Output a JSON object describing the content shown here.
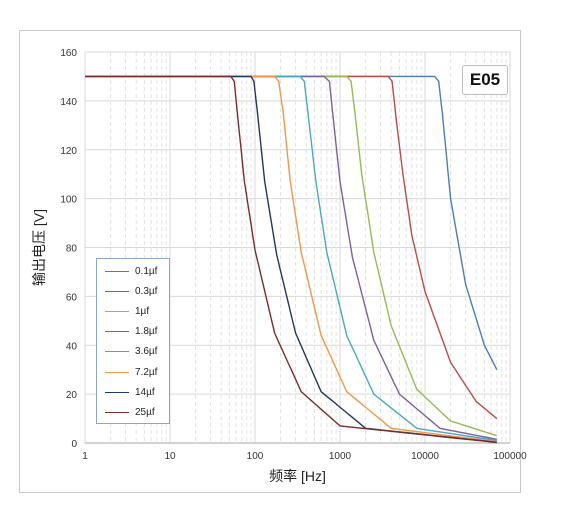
{
  "badge": "E05",
  "chart_data": {
    "type": "line",
    "xlabel": "频率 [Hz]",
    "ylabel": "输出电压 [V]",
    "xscale": "log",
    "xlim": [
      1,
      100000
    ],
    "ylim": [
      0,
      160
    ],
    "xticks": [
      "1",
      "10",
      "100",
      "1000",
      "10000",
      "100000"
    ],
    "yticks": [
      "0",
      "20",
      "40",
      "60",
      "80",
      "100",
      "120",
      "140",
      "160"
    ],
    "grid": true,
    "legend_position": "left",
    "series": [
      {
        "name": "0.1µf",
        "color": "#4a7ebb",
        "x": [
          1,
          10,
          100,
          1000,
          10000,
          13000,
          14500,
          16000,
          20000,
          30000,
          50000,
          70000
        ],
        "y": [
          150,
          150,
          150,
          150,
          150,
          150,
          148,
          135,
          100,
          65,
          40,
          30
        ]
      },
      {
        "name": "0.3µf",
        "color": "#be4b48",
        "x": [
          1,
          10,
          100,
          1000,
          3700,
          4100,
          4600,
          5500,
          7000,
          10000,
          20000,
          40000,
          70000
        ],
        "y": [
          150,
          150,
          150,
          150,
          150,
          148,
          132,
          110,
          85,
          62,
          33,
          17,
          10
        ]
      },
      {
        "name": "1µf",
        "color": "#98b954",
        "x": [
          1,
          10,
          100,
          1000,
          1200,
          1350,
          1500,
          1800,
          2500,
          4000,
          8000,
          20000,
          70000
        ],
        "y": [
          150,
          150,
          150,
          150,
          150,
          148,
          135,
          110,
          78,
          48,
          22,
          9,
          3
        ]
      },
      {
        "name": "1.8µf",
        "color": "#7d60a0",
        "x": [
          1,
          10,
          100,
          650,
          750,
          820,
          1000,
          1400,
          2500,
          5000,
          15000,
          70000
        ],
        "y": [
          150,
          150,
          150,
          150,
          148,
          135,
          107,
          76,
          42,
          20,
          6,
          1.5
        ]
      },
      {
        "name": "3.6µf",
        "color": "#46aac5",
        "x": [
          1,
          10,
          100,
          340,
          380,
          420,
          520,
          700,
          1200,
          2500,
          8000,
          70000
        ],
        "y": [
          150,
          150,
          150,
          150,
          148,
          135,
          107,
          78,
          44,
          20,
          6,
          1
        ]
      },
      {
        "name": "7.2µf",
        "color": "#f79646",
        "x": [
          1,
          10,
          100,
          170,
          190,
          215,
          260,
          350,
          600,
          1200,
          4000,
          70000
        ],
        "y": [
          150,
          150,
          150,
          150,
          148,
          135,
          107,
          78,
          44,
          21,
          6,
          0.5
        ]
      },
      {
        "name": "14µf",
        "color": "#1f3864",
        "x": [
          1,
          10,
          90,
          97,
          107,
          130,
          180,
          300,
          600,
          2000,
          70000
        ],
        "y": [
          150,
          150,
          150,
          148,
          135,
          107,
          77,
          45,
          21,
          6,
          0.3
        ]
      },
      {
        "name": "25µf",
        "color": "#7b2c2c",
        "x": [
          1,
          10,
          52,
          57,
          62,
          75,
          100,
          170,
          350,
          1000,
          70000
        ],
        "y": [
          150,
          150,
          150,
          148,
          135,
          107,
          79,
          45,
          21,
          7,
          0.2
        ]
      }
    ]
  }
}
